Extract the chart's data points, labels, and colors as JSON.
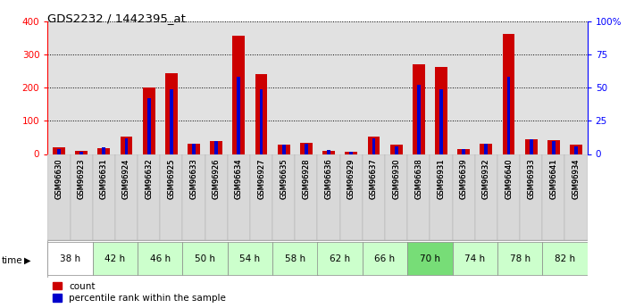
{
  "title": "GDS2232 / 1442395_at",
  "samples": [
    "GSM96630",
    "GSM96923",
    "GSM96631",
    "GSM96924",
    "GSM96632",
    "GSM96925",
    "GSM96633",
    "GSM96926",
    "GSM96634",
    "GSM96927",
    "GSM96635",
    "GSM96928",
    "GSM96636",
    "GSM96929",
    "GSM96637",
    "GSM96930",
    "GSM96638",
    "GSM96931",
    "GSM96639",
    "GSM96932",
    "GSM96640",
    "GSM96933",
    "GSM96641",
    "GSM96934"
  ],
  "time_groups": [
    {
      "label": "38 h",
      "indices": [
        0,
        1
      ],
      "bg": "#ffffff"
    },
    {
      "label": "42 h",
      "indices": [
        2,
        3
      ],
      "bg": "#ccffcc"
    },
    {
      "label": "46 h",
      "indices": [
        4,
        5
      ],
      "bg": "#ccffcc"
    },
    {
      "label": "50 h",
      "indices": [
        6,
        7
      ],
      "bg": "#ccffcc"
    },
    {
      "label": "54 h",
      "indices": [
        8,
        9
      ],
      "bg": "#ccffcc"
    },
    {
      "label": "58 h",
      "indices": [
        10,
        11
      ],
      "bg": "#ccffcc"
    },
    {
      "label": "62 h",
      "indices": [
        12,
        13
      ],
      "bg": "#ccffcc"
    },
    {
      "label": "66 h",
      "indices": [
        14,
        15
      ],
      "bg": "#ccffcc"
    },
    {
      "label": "70 h",
      "indices": [
        16,
        17
      ],
      "bg": "#77dd77"
    },
    {
      "label": "74 h",
      "indices": [
        18,
        19
      ],
      "bg": "#ccffcc"
    },
    {
      "label": "78 h",
      "indices": [
        20,
        21
      ],
      "bg": "#ccffcc"
    },
    {
      "label": "82 h",
      "indices": [
        22,
        23
      ],
      "bg": "#ccffcc"
    }
  ],
  "count_values": [
    20,
    10,
    18,
    52,
    200,
    243,
    32,
    40,
    358,
    242,
    28,
    33,
    10,
    8,
    52,
    28,
    272,
    264,
    15,
    32,
    362,
    45,
    43,
    28
  ],
  "percentile_values": [
    4,
    2,
    5,
    12,
    42,
    49,
    8,
    10,
    58,
    49,
    7,
    8,
    3,
    2,
    12,
    6,
    52,
    49,
    4,
    8,
    58,
    11,
    10,
    6
  ],
  "count_color": "#cc0000",
  "percentile_color": "#0000cc",
  "ylim_left": [
    0,
    400
  ],
  "ylim_right": [
    0,
    100
  ],
  "yticks_left": [
    0,
    100,
    200,
    300,
    400
  ],
  "yticks_right": [
    0,
    25,
    50,
    75,
    100
  ],
  "ytick_labels_right": [
    "0",
    "25",
    "50",
    "75",
    "100%"
  ],
  "legend_count": "count",
  "legend_percentile": "percentile rank within the sample"
}
